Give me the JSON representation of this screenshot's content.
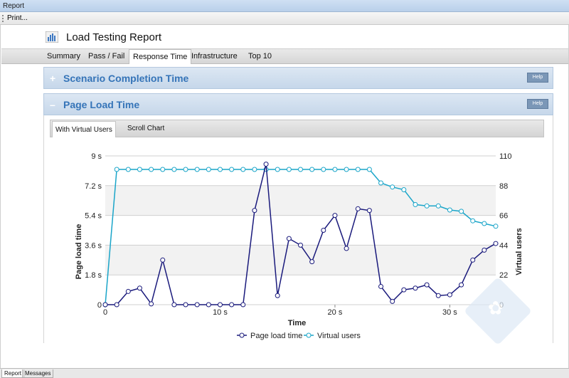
{
  "window": {
    "title": "Report"
  },
  "toolbar": {
    "print_label": "Print..."
  },
  "report": {
    "title": "Load Testing Report"
  },
  "tabs": [
    {
      "label": "Summary"
    },
    {
      "label": "Pass / Fail"
    },
    {
      "label": "Response Time"
    },
    {
      "label": "Infrastructure"
    },
    {
      "label": "Top 10"
    }
  ],
  "active_tab": "Response Time",
  "panels": [
    {
      "title": "Scenario Completion Time",
      "toggle": "+",
      "help": "Help"
    },
    {
      "title": "Page Load Time",
      "toggle": "–",
      "help": "Help"
    }
  ],
  "subtabs": [
    {
      "label": "With Virtual Users"
    },
    {
      "label": "Scroll Chart"
    }
  ],
  "bottom_tabs": [
    {
      "label": "Report"
    },
    {
      "label": "Messages"
    }
  ],
  "colors": {
    "page_load": "#1a1a7c",
    "virtual_users": "#1aa5c9",
    "panel_title": "#3574b8"
  },
  "chart_data": {
    "type": "line",
    "xlabel": "Time",
    "ylabel": "Page load time",
    "y2label": "Virtual users",
    "x_ticks": [
      "0",
      "10 s",
      "20 s",
      "30 s"
    ],
    "x_tick_values": [
      0,
      10,
      20,
      30
    ],
    "y_ticks": [
      "0",
      "1.8 s",
      "3.6 s",
      "5.4 s",
      "7.2 s",
      "9 s"
    ],
    "y_tick_values": [
      0,
      1.8,
      3.6,
      5.4,
      7.2,
      9
    ],
    "y2_ticks": [
      "0",
      "22",
      "44",
      "66",
      "88",
      "110"
    ],
    "y2_tick_values": [
      0,
      22,
      44,
      66,
      88,
      110
    ],
    "xlim": [
      0,
      34
    ],
    "ylim": [
      0,
      9
    ],
    "y2lim": [
      0,
      110
    ],
    "legend_position": "bottom-center",
    "grid": true,
    "series": [
      {
        "name": "Page load time",
        "axis": "left",
        "x": [
          0,
          1,
          2,
          3,
          4,
          5,
          6,
          7,
          8,
          9,
          10,
          11,
          12,
          13,
          14,
          15,
          16,
          17,
          18,
          19,
          20,
          21,
          22,
          23,
          24,
          25,
          26,
          27,
          28,
          29,
          30,
          31,
          32,
          33,
          34
        ],
        "values": [
          0,
          0,
          0.8,
          1.0,
          0.05,
          2.7,
          0,
          0,
          0,
          0,
          0,
          0,
          0,
          5.7,
          8.5,
          0.55,
          4.0,
          3.6,
          2.6,
          4.5,
          5.4,
          3.4,
          5.8,
          5.7,
          1.1,
          0.2,
          0.9,
          1.0,
          1.2,
          0.55,
          0.6,
          1.2,
          2.7,
          3.3,
          3.7
        ]
      },
      {
        "name": "Virtual users",
        "axis": "right",
        "x": [
          0,
          1,
          2,
          3,
          4,
          5,
          6,
          7,
          8,
          9,
          10,
          11,
          12,
          13,
          14,
          15,
          16,
          17,
          18,
          19,
          20,
          21,
          22,
          23,
          24,
          25,
          26,
          27,
          28,
          29,
          30,
          31,
          32,
          33,
          34
        ],
        "values": [
          0,
          100,
          100,
          100,
          100,
          100,
          100,
          100,
          100,
          100,
          100,
          100,
          100,
          100,
          100,
          100,
          100,
          100,
          100,
          100,
          100,
          100,
          100,
          100,
          90,
          87,
          85,
          74,
          73,
          73,
          70,
          69,
          62,
          60,
          58
        ]
      }
    ]
  }
}
